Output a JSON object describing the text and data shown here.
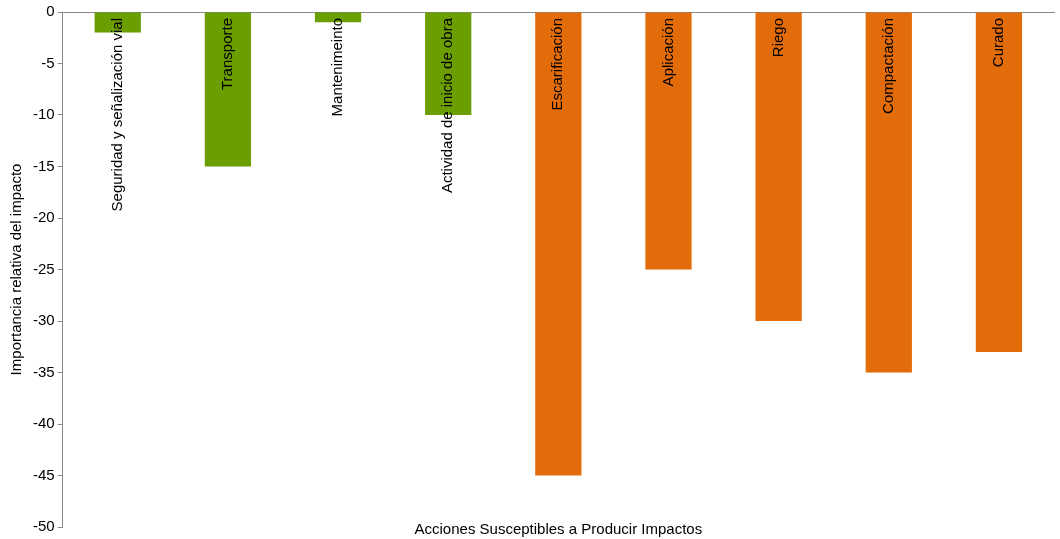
{
  "chart_data": {
    "type": "bar",
    "categories": [
      "Seguridad y señalización vial",
      "Transporte",
      "Mantenimeinto",
      "Actividad de inicio de obra",
      "Escarificación",
      "Aplicación",
      "Riego",
      "Compactación",
      "Curado"
    ],
    "values": [
      -2,
      -15,
      -1,
      -10,
      -45,
      -25,
      -30,
      -35,
      -33
    ],
    "colors": [
      "#6b9e00",
      "#6b9e00",
      "#6b9e00",
      "#6b9e00",
      "#e36c0a",
      "#e36c0a",
      "#e36c0a",
      "#e36c0a",
      "#e36c0a"
    ],
    "xlabel": "Acciones Susceptibles a Producir Impactos",
    "ylabel": "Importancia relativa del impacto",
    "ylim": [
      -50,
      0
    ],
    "yticks": [
      -50,
      -45,
      -40,
      -35,
      -30,
      -25,
      -20,
      -15,
      -10,
      -5,
      0
    ],
    "grid": false,
    "legend": false
  }
}
